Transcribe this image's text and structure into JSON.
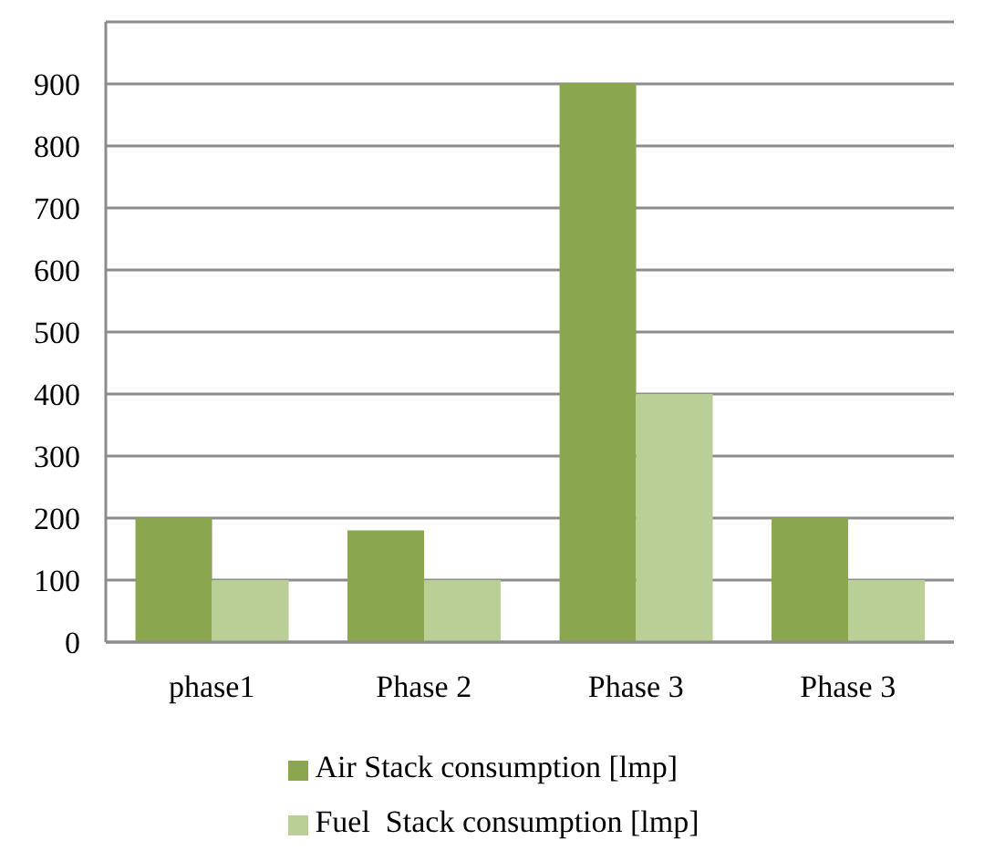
{
  "chart_data": {
    "type": "bar",
    "categories": [
      "phase1",
      "Phase 2",
      "Phase 3",
      "Phase 3"
    ],
    "series": [
      {
        "name": "Air Stack consumption [lmp]",
        "color": "#8aa64e",
        "values": [
          200,
          180,
          900,
          200
        ]
      },
      {
        "name": "Fuel  Stack consumption [lmp]",
        "color": "#b9cf95",
        "values": [
          100,
          100,
          400,
          100
        ]
      }
    ],
    "ylim": [
      0,
      1000
    ],
    "yticks": [
      0,
      100,
      200,
      300,
      400,
      500,
      600,
      700,
      800,
      900,
      {
        "value": 1000,
        "label": null
      }
    ],
    "grid": "y",
    "legend": "bottom"
  }
}
